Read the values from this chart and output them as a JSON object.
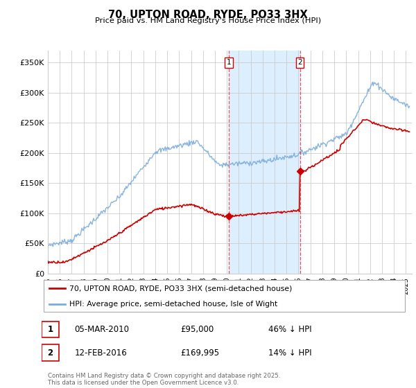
{
  "title": "70, UPTON ROAD, RYDE, PO33 3HX",
  "subtitle": "Price paid vs. HM Land Registry's House Price Index (HPI)",
  "ylabel_ticks": [
    "£0",
    "£50K",
    "£100K",
    "£150K",
    "£200K",
    "£250K",
    "£300K",
    "£350K"
  ],
  "ytick_values": [
    0,
    50000,
    100000,
    150000,
    200000,
    250000,
    300000,
    350000
  ],
  "ylim": [
    0,
    370000
  ],
  "xlim_start": 1995.0,
  "xlim_end": 2025.5,
  "vline1_x": 2010.17,
  "vline2_x": 2016.12,
  "sale1_label": "1",
  "sale1_date": "05-MAR-2010",
  "sale1_price": "£95,000",
  "sale1_hpi": "46% ↓ HPI",
  "sale1_price_val": 95000,
  "sale2_label": "2",
  "sale2_date": "12-FEB-2016",
  "sale2_price": "£169,995",
  "sale2_hpi": "14% ↓ HPI",
  "sale2_price_val": 169995,
  "legend_label_red": "70, UPTON ROAD, RYDE, PO33 3HX (semi-detached house)",
  "legend_label_blue": "HPI: Average price, semi-detached house, Isle of Wight",
  "footer": "Contains HM Land Registry data © Crown copyright and database right 2025.\nThis data is licensed under the Open Government Licence v3.0.",
  "highlight_fill": "#ddeeff",
  "red_color": "#cc0000",
  "blue_color": "#7aacdc",
  "grid_color": "#cccccc",
  "bg_color": "#ffffff"
}
